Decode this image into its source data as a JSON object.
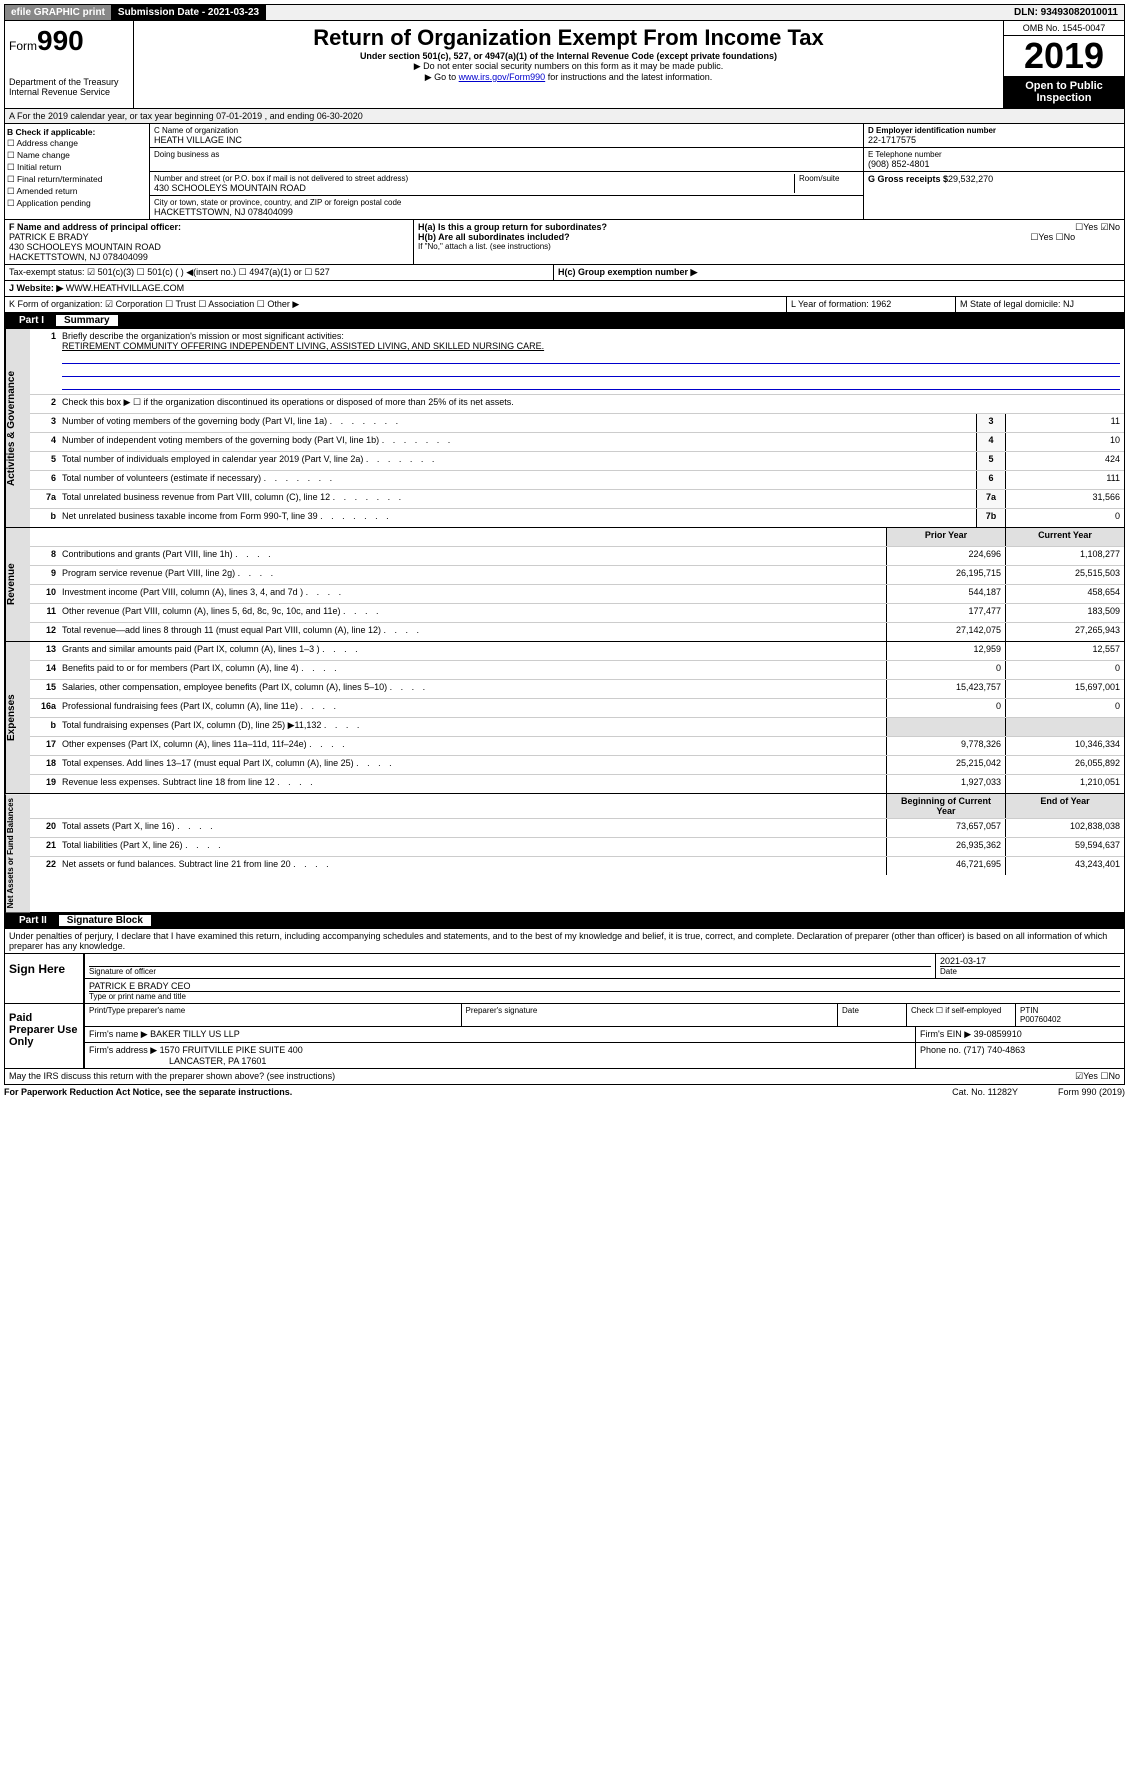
{
  "top": {
    "efile": "efile GRAPHIC print",
    "submission_label": "Submission Date - 2021-03-23",
    "dln": "DLN: 93493082010011"
  },
  "header": {
    "form_label": "Form",
    "form_number": "990",
    "dept": "Department of the Treasury\nInternal Revenue Service",
    "title": "Return of Organization Exempt From Income Tax",
    "subtitle": "Under section 501(c), 527, or 4947(a)(1) of the Internal Revenue Code (except private foundations)",
    "note1": "▶ Do not enter social security numbers on this form as it may be made public.",
    "note2_pre": "▶ Go to ",
    "note2_link": "www.irs.gov/Form990",
    "note2_post": " for instructions and the latest information.",
    "omb": "OMB No. 1545-0047",
    "year": "2019",
    "open": "Open to Public Inspection"
  },
  "rowA": "A For the 2019 calendar year, or tax year beginning 07-01-2019    , and ending 06-30-2020",
  "colB": {
    "label": "B Check if applicable:",
    "items": [
      "Address change",
      "Name change",
      "Initial return",
      "Final return/terminated",
      "Amended return",
      "Application pending"
    ]
  },
  "colC": {
    "name_label": "C Name of organization",
    "name": "HEATH VILLAGE INC",
    "dba_label": "Doing business as",
    "addr_label": "Number and street (or P.O. box if mail is not delivered to street address)",
    "room_label": "Room/suite",
    "addr": "430 SCHOOLEYS MOUNTAIN ROAD",
    "city_label": "City or town, state or province, country, and ZIP or foreign postal code",
    "city": "HACKETTSTOWN, NJ  078404099"
  },
  "colDE": {
    "d_label": "D Employer identification number",
    "ein": "22-1717575",
    "e_label": "E Telephone number",
    "phone": "(908) 852-4801",
    "g_label": "G Gross receipts $",
    "g_val": "29,532,270"
  },
  "rowF": {
    "f_label": "F Name and address of principal officer:",
    "f_name": "PATRICK E BRADY",
    "f_addr1": "430 SCHOOLEYS MOUNTAIN ROAD",
    "f_addr2": "HACKETTSTOWN, NJ  078404099",
    "ha": "H(a)  Is this a group return for subordinates?",
    "ha_yn": "☐Yes ☑No",
    "hb": "H(b)  Are all subordinates included?",
    "hb_yn": "☐Yes ☐No",
    "hb_note": "If \"No,\" attach a list. (see instructions)"
  },
  "taxStatus": {
    "label": "Tax-exempt status:",
    "opts": "☑ 501(c)(3)   ☐ 501(c) (  ) ◀(insert no.)   ☐ 4947(a)(1) or   ☐ 527",
    "hc": "H(c)  Group exemption number ▶"
  },
  "website": {
    "label": "J  Website: ▶",
    "val": "WWW.HEATHVILLAGE.COM"
  },
  "rowK": {
    "k": "K Form of organization:  ☑ Corporation  ☐ Trust  ☐ Association  ☐ Other ▶",
    "l": "L Year of formation: 1962",
    "m": "M State of legal domicile: NJ"
  },
  "part1": {
    "label": "Part I",
    "title": "Summary"
  },
  "summary": {
    "q1": "Briefly describe the organization's mission or most significant activities:",
    "mission": "RETIREMENT COMMUNITY OFFERING INDEPENDENT LIVING, ASSISTED LIVING, AND SKILLED NURSING CARE.",
    "q2": "Check this box ▶ ☐  if the organization discontinued its operations or disposed of more than 25% of its net assets.",
    "rows_gov": [
      {
        "n": "3",
        "d": "Number of voting members of the governing body (Part VI, line 1a)",
        "b": "3",
        "v": "11"
      },
      {
        "n": "4",
        "d": "Number of independent voting members of the governing body (Part VI, line 1b)",
        "b": "4",
        "v": "10"
      },
      {
        "n": "5",
        "d": "Total number of individuals employed in calendar year 2019 (Part V, line 2a)",
        "b": "5",
        "v": "424"
      },
      {
        "n": "6",
        "d": "Total number of volunteers (estimate if necessary)",
        "b": "6",
        "v": "111"
      },
      {
        "n": "7a",
        "d": "Total unrelated business revenue from Part VIII, column (C), line 12",
        "b": "7a",
        "v": "31,566"
      },
      {
        "n": "b",
        "d": "Net unrelated business taxable income from Form 990-T, line 39",
        "b": "7b",
        "v": "0"
      }
    ],
    "hdr_prior": "Prior Year",
    "hdr_current": "Current Year",
    "rows_rev": [
      {
        "n": "8",
        "d": "Contributions and grants (Part VIII, line 1h)",
        "p": "224,696",
        "c": "1,108,277"
      },
      {
        "n": "9",
        "d": "Program service revenue (Part VIII, line 2g)",
        "p": "26,195,715",
        "c": "25,515,503"
      },
      {
        "n": "10",
        "d": "Investment income (Part VIII, column (A), lines 3, 4, and 7d )",
        "p": "544,187",
        "c": "458,654"
      },
      {
        "n": "11",
        "d": "Other revenue (Part VIII, column (A), lines 5, 6d, 8c, 9c, 10c, and 11e)",
        "p": "177,477",
        "c": "183,509"
      },
      {
        "n": "12",
        "d": "Total revenue—add lines 8 through 11 (must equal Part VIII, column (A), line 12)",
        "p": "27,142,075",
        "c": "27,265,943"
      }
    ],
    "rows_exp": [
      {
        "n": "13",
        "d": "Grants and similar amounts paid (Part IX, column (A), lines 1–3 )",
        "p": "12,959",
        "c": "12,557"
      },
      {
        "n": "14",
        "d": "Benefits paid to or for members (Part IX, column (A), line 4)",
        "p": "0",
        "c": "0"
      },
      {
        "n": "15",
        "d": "Salaries, other compensation, employee benefits (Part IX, column (A), lines 5–10)",
        "p": "15,423,757",
        "c": "15,697,001"
      },
      {
        "n": "16a",
        "d": "Professional fundraising fees (Part IX, column (A), line 11e)",
        "p": "0",
        "c": "0"
      },
      {
        "n": "b",
        "d": "Total fundraising expenses (Part IX, column (D), line 25) ▶11,132",
        "p": "",
        "c": ""
      },
      {
        "n": "17",
        "d": "Other expenses (Part IX, column (A), lines 11a–11d, 11f–24e)",
        "p": "9,778,326",
        "c": "10,346,334"
      },
      {
        "n": "18",
        "d": "Total expenses. Add lines 13–17 (must equal Part IX, column (A), line 25)",
        "p": "25,215,042",
        "c": "26,055,892"
      },
      {
        "n": "19",
        "d": "Revenue less expenses. Subtract line 18 from line 12",
        "p": "1,927,033",
        "c": "1,210,051"
      }
    ],
    "hdr_begin": "Beginning of Current Year",
    "hdr_end": "End of Year",
    "rows_net": [
      {
        "n": "20",
        "d": "Total assets (Part X, line 16)",
        "p": "73,657,057",
        "c": "102,838,038"
      },
      {
        "n": "21",
        "d": "Total liabilities (Part X, line 26)",
        "p": "26,935,362",
        "c": "59,594,637"
      },
      {
        "n": "22",
        "d": "Net assets or fund balances. Subtract line 21 from line 20",
        "p": "46,721,695",
        "c": "43,243,401"
      }
    ]
  },
  "sideLabels": {
    "gov": "Activities & Governance",
    "rev": "Revenue",
    "exp": "Expenses",
    "net": "Net Assets or Fund Balances"
  },
  "part2": {
    "label": "Part II",
    "title": "Signature Block",
    "decl": "Under penalties of perjury, I declare that I have examined this return, including accompanying schedules and statements, and to the best of my knowledge and belief, it is true, correct, and complete. Declaration of preparer (other than officer) is based on all information of which preparer has any knowledge."
  },
  "sign": {
    "sign_here": "Sign Here",
    "sig_officer": "Signature of officer",
    "date": "2021-03-17",
    "date_label": "Date",
    "name_title": "PATRICK E BRADY CEO",
    "name_label": "Type or print name and title"
  },
  "paid": {
    "label": "Paid Preparer Use Only",
    "h1": "Print/Type preparer's name",
    "h2": "Preparer's signature",
    "h3": "Date",
    "h4": "Check ☐ if self-employed",
    "ptin_label": "PTIN",
    "ptin": "P00760402",
    "firm_label": "Firm's name    ▶",
    "firm": "BAKER TILLY US LLP",
    "ein_label": "Firm's EIN ▶",
    "ein": "39-0859910",
    "addr_label": "Firm's address ▶",
    "addr1": "1570 FRUITVILLE PIKE SUITE 400",
    "addr2": "LANCASTER, PA  17601",
    "phone_label": "Phone no.",
    "phone": "(717) 740-4863"
  },
  "discuss": {
    "q": "May the IRS discuss this return with the preparer shown above? (see instructions)",
    "a": "☑Yes  ☐No"
  },
  "footer": {
    "left": "For Paperwork Reduction Act Notice, see the separate instructions.",
    "mid": "Cat. No. 11282Y",
    "right": "Form 990 (2019)"
  }
}
